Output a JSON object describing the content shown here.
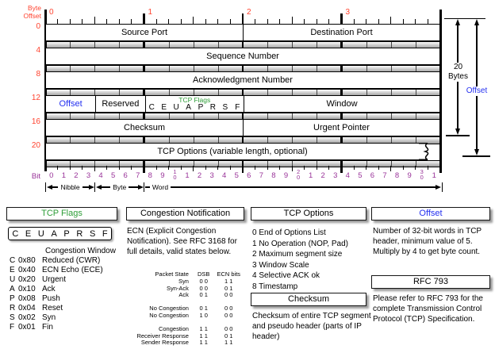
{
  "diagram": {
    "byte_offset_label": {
      "line1": "Byte",
      "line2": "Offset"
    },
    "top_ruler_numbers": [
      "0",
      "1",
      "2",
      "3"
    ],
    "row_offset_numbers": [
      "0",
      "4",
      "8",
      "12",
      "16",
      "20"
    ],
    "fields": {
      "source_port": "Source Port",
      "destination_port": "Destination Port",
      "sequence_number": "Sequence Number",
      "acknowledgment_number": "Acknowledgment Number",
      "offset": "Offset",
      "reserved": "Reserved",
      "tcp_flags_title": "TCP Flags",
      "flag_letters": [
        "C",
        "E",
        "U",
        "A",
        "P",
        "R",
        "S",
        "F"
      ],
      "window": "Window",
      "checksum": "Checksum",
      "urgent_pointer": "Urgent Pointer",
      "tcp_options": "TCP Options (variable length, optional)"
    },
    "bit_label": "Bit",
    "bit_numbers": [
      "0",
      "1",
      "2",
      "3",
      "4",
      "5",
      "6",
      "7",
      "8",
      "9",
      [
        "1",
        "0"
      ],
      "1",
      "2",
      "3",
      "4",
      "5",
      "6",
      "7",
      "8",
      "9",
      [
        "2",
        "0"
      ],
      "1",
      "2",
      "3",
      "4",
      "5",
      "6",
      "7",
      "8",
      "9",
      [
        "3",
        "0"
      ],
      "1"
    ],
    "scales": {
      "nibble": "Nibble",
      "byte": "Byte",
      "word": "Word"
    },
    "measurements": {
      "bytes_line1": "20",
      "bytes_line2": "Bytes",
      "offset": "Offset"
    }
  },
  "panels": {
    "tcp_flags": {
      "title": "TCP Flags",
      "flag_letters": [
        "C",
        "E",
        "U",
        "A",
        "P",
        "R",
        "S",
        "F"
      ],
      "congestion_window_label": "Congestion Window",
      "items": [
        {
          "letter": "C",
          "hex": "0x80",
          "desc": "Reduced (CWR)"
        },
        {
          "letter": "E",
          "hex": "0x40",
          "desc": "ECN Echo (ECE)"
        },
        {
          "letter": "U",
          "hex": "0x20",
          "desc": "Urgent"
        },
        {
          "letter": "A",
          "hex": "0x10",
          "desc": "Ack"
        },
        {
          "letter": "P",
          "hex": "0x08",
          "desc": "Push"
        },
        {
          "letter": "R",
          "hex": "0x04",
          "desc": "Reset"
        },
        {
          "letter": "S",
          "hex": "0x02",
          "desc": "Syn"
        },
        {
          "letter": "F",
          "hex": "0x01",
          "desc": "Fin"
        }
      ]
    },
    "congestion_notification": {
      "title": "Congestion Notification",
      "body": "ECN (Explicit Congestion Notification).  See RFC 3168 for full details, valid states below.",
      "table": {
        "headers": [
          "Packet State",
          "DSB",
          "ECN bits"
        ],
        "rows": [
          {
            "state": "Syn",
            "dsb": "0 0",
            "ecn": "1 1"
          },
          {
            "state": "Syn-Ack",
            "dsb": "0 0",
            "ecn": "0 1"
          },
          {
            "state": "Ack",
            "dsb": "0 1",
            "ecn": "0 0"
          },
          {
            "gap": true
          },
          {
            "state": "No Congestion",
            "dsb": "0 1",
            "ecn": "0 0"
          },
          {
            "state": "No Congestion",
            "dsb": "1 0",
            "ecn": "0 0"
          },
          {
            "gap": true
          },
          {
            "state": "Congestion",
            "dsb": "1 1",
            "ecn": "0 0"
          },
          {
            "state": "Receiver Response",
            "dsb": "1 1",
            "ecn": "0 1"
          },
          {
            "state": "Sender Response",
            "dsb": "1 1",
            "ecn": "1 1"
          }
        ]
      }
    },
    "tcp_options": {
      "title": "TCP Options",
      "items": [
        "0 End of Options List",
        "1 No Operation (NOP, Pad)",
        "2 Maximum segment size",
        "3 Window Scale",
        "4 Selective ACK ok",
        "8 Timestamp"
      ]
    },
    "checksum": {
      "title": "Checksum",
      "body": "Checksum of entire TCP segment and pseudo header (parts of IP header)"
    },
    "offset": {
      "title": "Offset",
      "body": "Number of 32-bit words in TCP header, minimum value of 5.  Multiply by 4 to get byte count."
    },
    "rfc793": {
      "title": "RFC 793",
      "body": "Please refer to RFC 793 for the complete Transmission Control Protocol (TCP) Specification."
    }
  },
  "colors": {
    "red": "#ff4430",
    "purple": "#993399",
    "green": "#2e9e38",
    "blue": "#2430f0"
  }
}
